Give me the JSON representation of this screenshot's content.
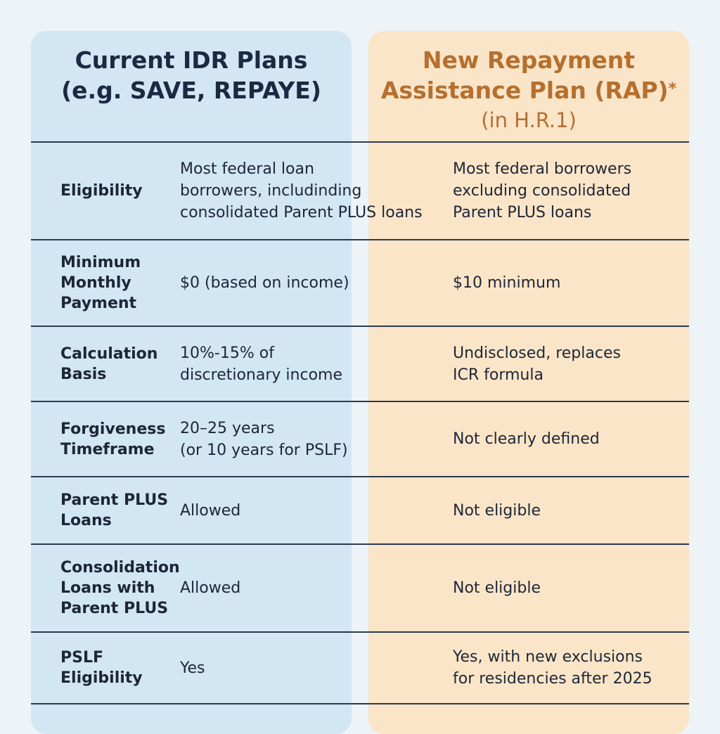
{
  "header": {
    "current_title": "Current IDR Plans",
    "current_subtitle": "(e.g. SAVE, REPAYE)",
    "rap_title": "New Repayment Assistance Plan (RAP)",
    "rap_asterisk": "*",
    "rap_subtitle": "(in H.R.1)"
  },
  "rows": [
    {
      "label": "Eligibility",
      "current": "Most federal loan\nborrowers, includinding\nconsolidated Parent PLUS loans",
      "rap": "Most federal borrowers\nexcluding consolidated\nParent PLUS loans"
    },
    {
      "label": "Minimum\nMonthly\nPayment",
      "current": "$0 (based on income)",
      "rap": "$10 minimum"
    },
    {
      "label": "Calculation\nBasis",
      "current": "10%-15% of\ndiscretionary income",
      "rap": "Undisclosed, replaces\nICR formula"
    },
    {
      "label": "Forgiveness\nTimeframe",
      "current": "20–25 years\n(or 10 years for PSLF)",
      "rap": "Not clearly defined"
    },
    {
      "label": "Parent PLUS\nLoans",
      "current": "Allowed",
      "rap": "Not eligible"
    },
    {
      "label": "Consolidation\nLoans with\nParent PLUS",
      "current": "Allowed",
      "rap": "Not eligible"
    },
    {
      "label": "PSLF\nEligibility",
      "current": "Yes",
      "rap": "Yes, with new exclusions\nfor residencies after 2025"
    }
  ]
}
